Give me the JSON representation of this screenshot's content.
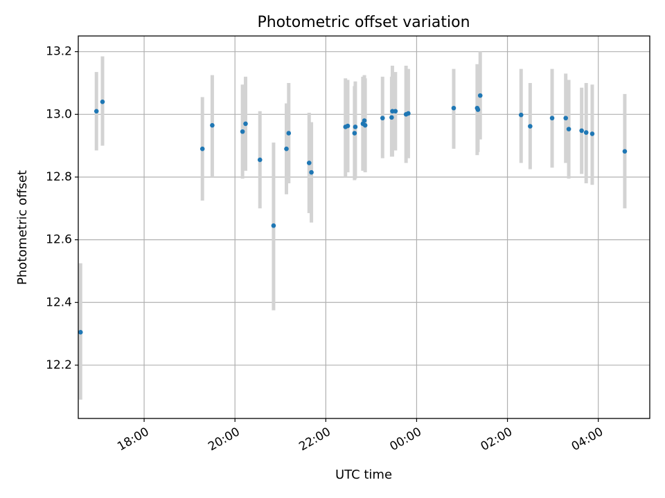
{
  "chart_data": {
    "type": "scatter",
    "title": "Photometric offset variation",
    "xlabel": "UTC time",
    "ylabel": "Photometric offset",
    "x_axis": {
      "kind": "time",
      "range": [
        "16:33",
        "05:08"
      ],
      "ticks": [
        "18:00",
        "20:00",
        "22:00",
        "00:00",
        "02:00",
        "04:00"
      ]
    },
    "y_axis": {
      "range": [
        12.03,
        13.25
      ],
      "ticks": [
        "12.2",
        "12.4",
        "12.6",
        "12.8",
        "13.0",
        "13.2"
      ]
    },
    "grid": true,
    "colors": {
      "points": "#1f77b4",
      "error_bars": "#d3d3d3"
    },
    "series": [
      {
        "points": [
          {
            "x": "16:36",
            "y": 12.305,
            "yerr_low": 12.09,
            "yerr_high": 12.525
          },
          {
            "x": "16:57",
            "y": 13.01,
            "yerr_low": 12.885,
            "yerr_high": 13.135
          },
          {
            "x": "17:05",
            "y": 13.04,
            "yerr_low": 12.9,
            "yerr_high": 13.185
          },
          {
            "x": "19:17",
            "y": 12.89,
            "yerr_low": 12.725,
            "yerr_high": 13.055
          },
          {
            "x": "19:30",
            "y": 12.965,
            "yerr_low": 12.8,
            "yerr_high": 13.125
          },
          {
            "x": "20:10",
            "y": 12.945,
            "yerr_low": 12.795,
            "yerr_high": 13.095
          },
          {
            "x": "20:14",
            "y": 12.97,
            "yerr_low": 12.82,
            "yerr_high": 13.12
          },
          {
            "x": "20:33",
            "y": 12.855,
            "yerr_low": 12.7,
            "yerr_high": 13.01
          },
          {
            "x": "20:51",
            "y": 12.645,
            "yerr_low": 12.375,
            "yerr_high": 12.91
          },
          {
            "x": "21:08",
            "y": 12.89,
            "yerr_low": 12.745,
            "yerr_high": 13.035
          },
          {
            "x": "21:11",
            "y": 12.94,
            "yerr_low": 12.78,
            "yerr_high": 13.1
          },
          {
            "x": "21:38",
            "y": 12.845,
            "yerr_low": 12.685,
            "yerr_high": 13.005
          },
          {
            "x": "21:41",
            "y": 12.815,
            "yerr_low": 12.655,
            "yerr_high": 12.975
          },
          {
            "x": "22:26",
            "y": 12.96,
            "yerr_low": 12.8,
            "yerr_high": 13.115
          },
          {
            "x": "22:29",
            "y": 12.963,
            "yerr_low": 12.815,
            "yerr_high": 13.11
          },
          {
            "x": "22:38",
            "y": 12.94,
            "yerr_low": 12.79,
            "yerr_high": 13.09
          },
          {
            "x": "22:39",
            "y": 12.96,
            "yerr_low": 12.795,
            "yerr_high": 13.105
          },
          {
            "x": "22:49",
            "y": 12.97,
            "yerr_low": 12.82,
            "yerr_high": 13.12
          },
          {
            "x": "22:51",
            "y": 12.98,
            "yerr_low": 12.83,
            "yerr_high": 13.125
          },
          {
            "x": "22:52",
            "y": 12.965,
            "yerr_low": 12.815,
            "yerr_high": 13.115
          },
          {
            "x": "23:15",
            "y": 12.988,
            "yerr_low": 12.86,
            "yerr_high": 13.12
          },
          {
            "x": "23:27",
            "y": 12.99,
            "yerr_low": 12.865,
            "yerr_high": 13.12
          },
          {
            "x": "23:28",
            "y": 13.01,
            "yerr_low": 12.865,
            "yerr_high": 13.155
          },
          {
            "x": "23:32",
            "y": 13.01,
            "yerr_low": 12.885,
            "yerr_high": 13.135
          },
          {
            "x": "23:46",
            "y": 13.0,
            "yerr_low": 12.845,
            "yerr_high": 13.155
          },
          {
            "x": "23:49",
            "y": 13.003,
            "yerr_low": 12.86,
            "yerr_high": 13.145
          },
          {
            "x": "00:49",
            "y": 13.02,
            "yerr_low": 12.89,
            "yerr_high": 13.145
          },
          {
            "x": "01:20",
            "y": 13.02,
            "yerr_low": 12.87,
            "yerr_high": 13.16
          },
          {
            "x": "01:21",
            "y": 13.015,
            "yerr_low": 12.88,
            "yerr_high": 13.155
          },
          {
            "x": "01:24",
            "y": 13.06,
            "yerr_low": 12.92,
            "yerr_high": 13.2
          },
          {
            "x": "02:18",
            "y": 12.998,
            "yerr_low": 12.845,
            "yerr_high": 13.145
          },
          {
            "x": "02:30",
            "y": 12.962,
            "yerr_low": 12.825,
            "yerr_high": 13.1
          },
          {
            "x": "02:59",
            "y": 12.988,
            "yerr_low": 12.83,
            "yerr_high": 13.145
          },
          {
            "x": "03:17",
            "y": 12.988,
            "yerr_low": 12.845,
            "yerr_high": 13.13
          },
          {
            "x": "03:21",
            "y": 12.953,
            "yerr_low": 12.795,
            "yerr_high": 13.11
          },
          {
            "x": "03:38",
            "y": 12.948,
            "yerr_low": 12.81,
            "yerr_high": 13.085
          },
          {
            "x": "03:44",
            "y": 12.942,
            "yerr_low": 12.78,
            "yerr_high": 13.1
          },
          {
            "x": "03:52",
            "y": 12.938,
            "yerr_low": 12.775,
            "yerr_high": 13.095
          },
          {
            "x": "04:35",
            "y": 12.882,
            "yerr_low": 12.7,
            "yerr_high": 13.065
          }
        ]
      }
    ]
  }
}
